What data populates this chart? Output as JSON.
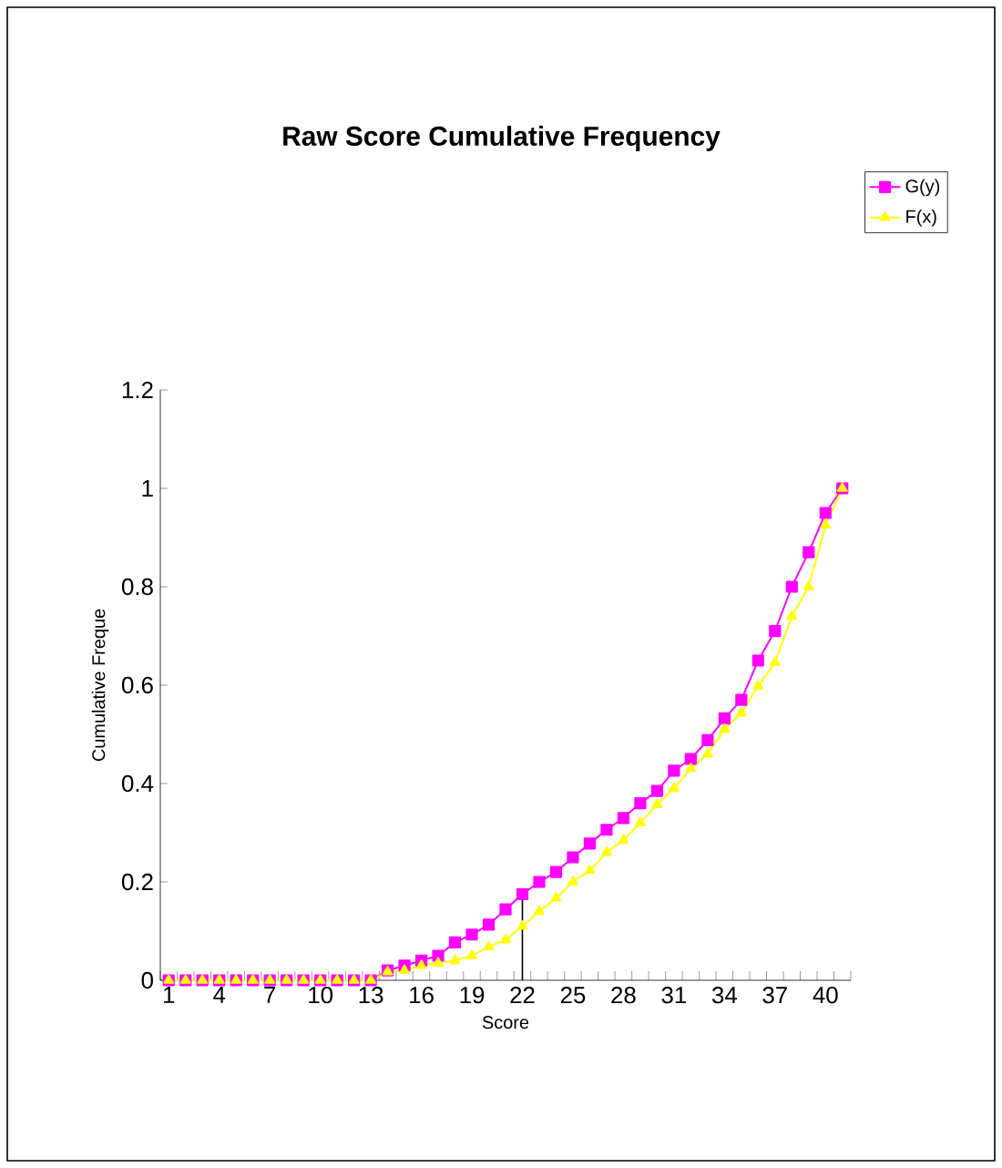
{
  "chart_data": {
    "type": "line",
    "title": "Raw Score Cumulative Frequency",
    "xlabel": "Score",
    "ylabel": "Cumulative Freque",
    "categories": [
      "1",
      null,
      null,
      "4",
      null,
      null,
      "7",
      null,
      null,
      "10",
      null,
      null,
      "13",
      null,
      null,
      "16",
      null,
      null,
      "19",
      null,
      null,
      "22",
      null,
      null,
      "25",
      null,
      null,
      "28",
      null,
      null,
      "31",
      null,
      null,
      "34",
      null,
      null,
      "37",
      null,
      null,
      "40",
      null
    ],
    "series": [
      {
        "name": "G(y)",
        "color": "#ff00ff",
        "marker": "square",
        "values": [
          0,
          0,
          0,
          0,
          0,
          0,
          0,
          0,
          0,
          0,
          0,
          0,
          0,
          0.02,
          0.03,
          0.04,
          0.05,
          0.077,
          0.093,
          0.113,
          0.144,
          0.175,
          0.2,
          0.22,
          0.25,
          0.278,
          0.306,
          0.33,
          0.36,
          0.385,
          0.426,
          0.45,
          0.488,
          0.532,
          0.57,
          0.65,
          0.71,
          0.8,
          0.87,
          0.95,
          1.0
        ]
      },
      {
        "name": "F(x)",
        "color": "#ffff00",
        "marker": "triangle",
        "values": [
          0,
          0,
          0,
          0,
          0,
          0,
          0,
          0,
          0,
          0,
          0,
          0,
          0,
          0.017,
          0.02,
          0.03,
          0.035,
          0.04,
          0.05,
          0.068,
          0.082,
          0.11,
          0.14,
          0.167,
          0.2,
          0.223,
          0.26,
          0.285,
          0.32,
          0.357,
          0.39,
          0.43,
          0.46,
          0.51,
          0.543,
          0.598,
          0.646,
          0.74,
          0.8,
          0.925,
          1.0
        ]
      }
    ],
    "ylim": [
      0,
      1.2
    ],
    "yticks": [
      0,
      0.2,
      0.4,
      0.6,
      0.8,
      1,
      1.2
    ],
    "ref_lines": [
      {
        "axis": "x",
        "value": "22",
        "color": "#000000"
      }
    ],
    "legend": "top right",
    "grid": false,
    "line_style": "solid"
  }
}
